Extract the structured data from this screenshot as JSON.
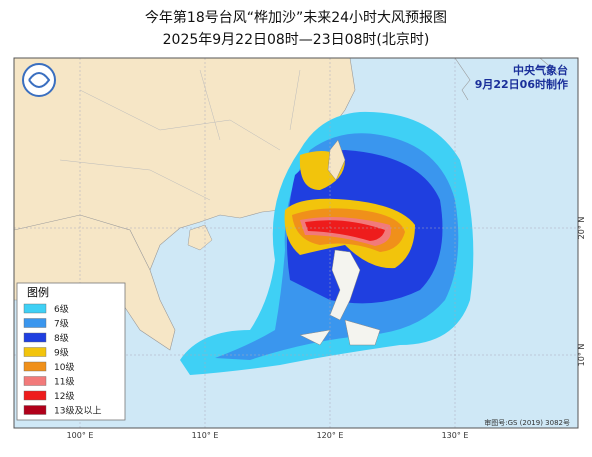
{
  "header": {
    "title": "今年第18号台风“桦加沙”未来24小时大风预报图",
    "subtitle": "2025年9月22日08时—23日08时(北京时)"
  },
  "agency": {
    "name": "中央气象台",
    "issued": "9月22日06时制作"
  },
  "legend": {
    "title": "图例",
    "items": [
      {
        "label": "6级",
        "color": "#3fd0f5"
      },
      {
        "label": "7级",
        "color": "#3a96ee"
      },
      {
        "label": "8级",
        "color": "#1f3fe0"
      },
      {
        "label": "9级",
        "color": "#f2c40c"
      },
      {
        "label": "10级",
        "color": "#f0901a"
      },
      {
        "label": "11级",
        "color": "#f27a7a"
      },
      {
        "label": "12级",
        "color": "#ee1c1c"
      },
      {
        "label": "13级及以上",
        "color": "#b0001a"
      }
    ]
  },
  "axes": {
    "longitudes": [
      "100° E",
      "110° E",
      "120° E",
      "130° E"
    ],
    "latitudes": [
      "20° N",
      "10° N"
    ]
  },
  "footer": {
    "map_number": "审图号:GS (2019) 3082号"
  }
}
